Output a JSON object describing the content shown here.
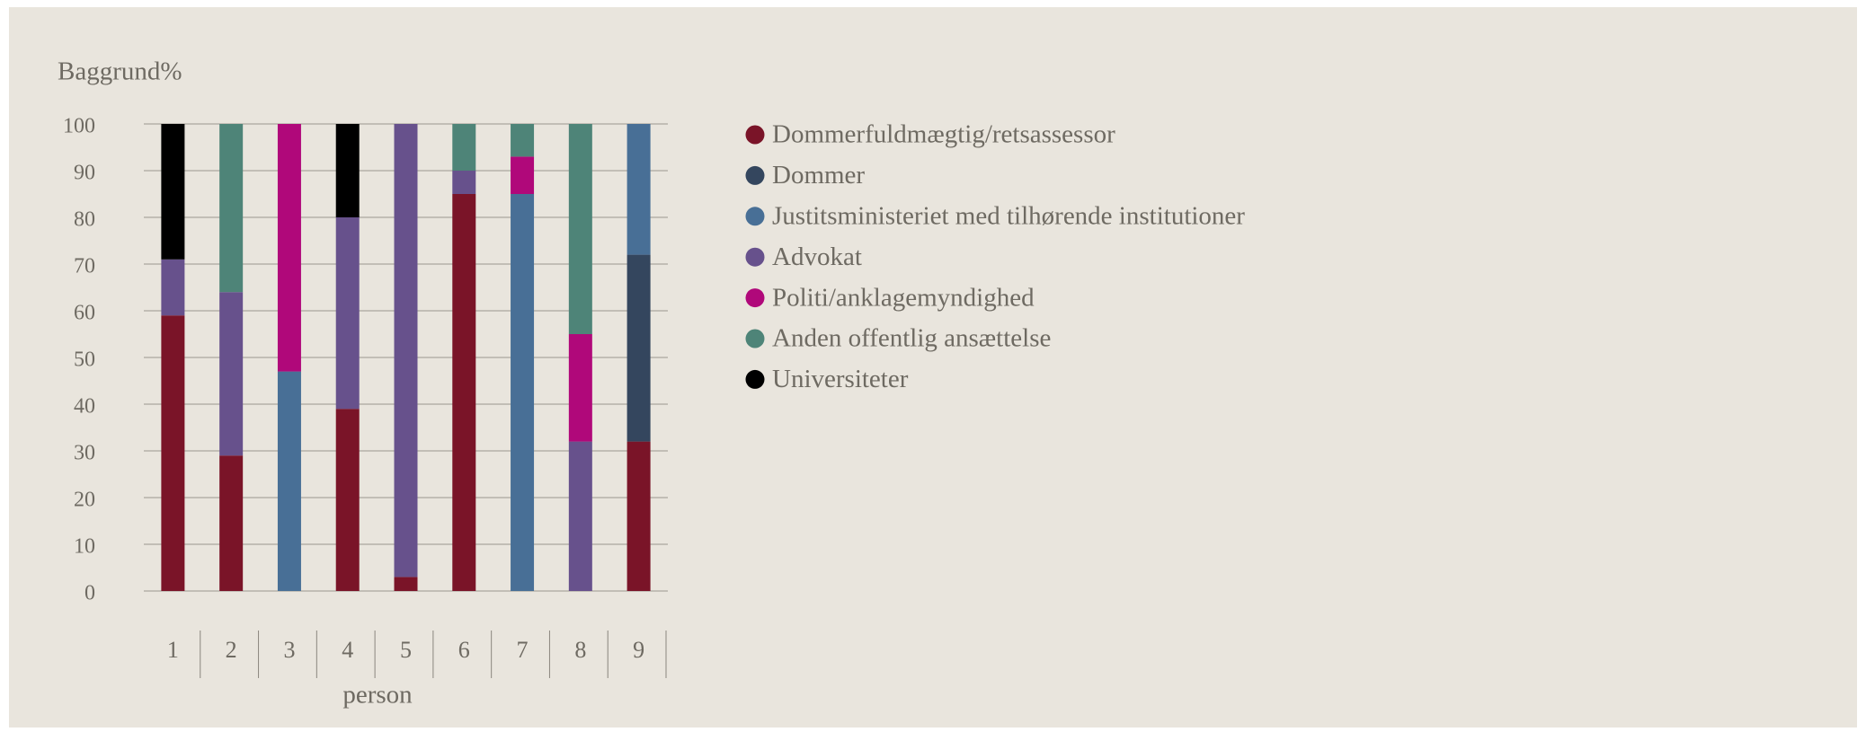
{
  "chart_data": {
    "type": "stacked_bar",
    "title": "Baggrund%",
    "x_label": "person",
    "categories": [
      "1",
      "2",
      "3",
      "4",
      "5",
      "6",
      "7",
      "8",
      "9"
    ],
    "series": [
      {
        "name": "Dommerfuldmægtig/retsassessor",
        "color": "#7a1428",
        "values": [
          59,
          29,
          0,
          39,
          3,
          85,
          0,
          0,
          32
        ]
      },
      {
        "name": "Dommer",
        "color": "#34465e",
        "values": [
          0,
          0,
          0,
          0,
          0,
          0,
          0,
          0,
          40
        ]
      },
      {
        "name": "Justitsministeriet med tilhørende institutioner",
        "color": "#486f96",
        "values": [
          0,
          0,
          47,
          0,
          0,
          0,
          85,
          0,
          28
        ]
      },
      {
        "name": "Advokat",
        "color": "#67518c",
        "values": [
          12,
          35,
          0,
          41,
          97,
          5,
          0,
          32,
          0
        ]
      },
      {
        "name": "Politi/anklagemyndighed",
        "color": "#b0087a",
        "values": [
          0,
          0,
          53,
          0,
          0,
          0,
          8,
          23,
          0
        ]
      },
      {
        "name": "Anden offentlig ansættelse",
        "color": "#4e8478",
        "values": [
          0,
          36,
          0,
          0,
          0,
          10,
          7,
          45,
          0
        ]
      },
      {
        "name": "Universiteter",
        "color": "#000000",
        "values": [
          29,
          0,
          0,
          20,
          0,
          0,
          0,
          0,
          0
        ]
      }
    ],
    "ylim": [
      0,
      100
    ],
    "yticks": [
      0,
      10,
      20,
      30,
      40,
      50,
      60,
      70,
      80,
      90,
      100
    ],
    "grid": true
  }
}
